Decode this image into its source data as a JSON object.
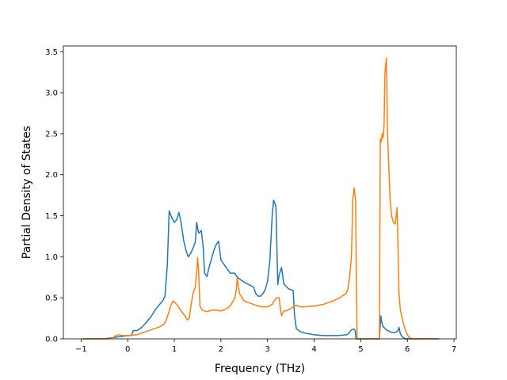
{
  "chart_data": {
    "type": "line",
    "title": "",
    "xlabel": "Frequency (THz)",
    "ylabel": "Partial Density of States",
    "xlim": [
      -1.38,
      7.05
    ],
    "ylim": [
      0.0,
      3.57
    ],
    "xticks": [
      -1,
      0,
      1,
      2,
      3,
      4,
      5,
      6,
      7
    ],
    "xtick_labels": [
      "−1",
      "0",
      "1",
      "2",
      "3",
      "4",
      "5",
      "6",
      "7"
    ],
    "yticks": [
      0.0,
      0.5,
      1.0,
      1.5,
      2.0,
      2.5,
      3.0,
      3.5
    ],
    "ytick_labels": [
      "0.0",
      "0.5",
      "1.0",
      "1.5",
      "2.0",
      "2.5",
      "3.0",
      "3.5"
    ],
    "grid": false,
    "legend": "none",
    "series": [
      {
        "color": "#1f77b4",
        "x": [
          -0.97,
          -0.5,
          0.0,
          0.08,
          0.12,
          0.2,
          0.3,
          0.4,
          0.5,
          0.6,
          0.7,
          0.75,
          0.8,
          0.85,
          0.89,
          0.95,
          1.0,
          1.05,
          1.1,
          1.15,
          1.2,
          1.25,
          1.3,
          1.35,
          1.4,
          1.45,
          1.48,
          1.52,
          1.55,
          1.58,
          1.62,
          1.65,
          1.7,
          1.75,
          1.8,
          1.85,
          1.9,
          1.95,
          2.0,
          2.1,
          2.2,
          2.3,
          2.35,
          2.4,
          2.5,
          2.6,
          2.7,
          2.75,
          2.8,
          2.85,
          2.9,
          2.95,
          3.0,
          3.05,
          3.1,
          3.13,
          3.15,
          3.18,
          3.22,
          3.25,
          3.3,
          3.35,
          3.4,
          3.45,
          3.5,
          3.55,
          3.58,
          3.62,
          3.7,
          3.8,
          4.0,
          4.2,
          4.5,
          4.7,
          4.75,
          4.8,
          4.85,
          4.88,
          4.9,
          4.95,
          5.4,
          5.43,
          5.45,
          5.48,
          5.55,
          5.65,
          5.75,
          5.8,
          5.82,
          5.85,
          5.9,
          5.95,
          6.05,
          6.68
        ],
        "y": [
          0.0,
          0.0,
          0.04,
          0.04,
          0.1,
          0.1,
          0.14,
          0.2,
          0.27,
          0.36,
          0.43,
          0.46,
          0.52,
          0.9,
          1.56,
          1.47,
          1.42,
          1.45,
          1.54,
          1.4,
          1.2,
          1.08,
          1.0,
          1.04,
          1.1,
          1.18,
          1.42,
          1.29,
          1.3,
          1.32,
          1.12,
          0.8,
          0.76,
          0.88,
          0.98,
          1.08,
          1.15,
          1.19,
          0.96,
          0.88,
          0.8,
          0.8,
          0.75,
          0.73,
          0.69,
          0.66,
          0.63,
          0.55,
          0.52,
          0.52,
          0.55,
          0.6,
          0.7,
          0.95,
          1.5,
          1.69,
          1.66,
          1.62,
          0.66,
          0.78,
          0.87,
          0.67,
          0.64,
          0.61,
          0.6,
          0.59,
          0.28,
          0.12,
          0.09,
          0.07,
          0.05,
          0.04,
          0.04,
          0.05,
          0.07,
          0.11,
          0.12,
          0.1,
          0.0,
          0.0,
          0.0,
          0.28,
          0.2,
          0.15,
          0.11,
          0.08,
          0.08,
          0.1,
          0.14,
          0.06,
          0.02,
          0.0,
          0.0,
          0.0
        ]
      },
      {
        "color": "#ff7f0e",
        "x": [
          -0.97,
          -0.4,
          -0.3,
          -0.25,
          -0.2,
          -0.1,
          0.0,
          0.2,
          0.4,
          0.6,
          0.7,
          0.78,
          0.82,
          0.87,
          0.92,
          0.97,
          1.0,
          1.05,
          1.1,
          1.15,
          1.2,
          1.25,
          1.28,
          1.32,
          1.35,
          1.4,
          1.45,
          1.48,
          1.5,
          1.52,
          1.55,
          1.6,
          1.7,
          1.8,
          1.9,
          2.0,
          2.1,
          2.2,
          2.25,
          2.3,
          2.33,
          2.35,
          2.4,
          2.5,
          2.6,
          2.7,
          2.8,
          2.9,
          3.0,
          3.1,
          3.15,
          3.2,
          3.25,
          3.28,
          3.3,
          3.35,
          3.4,
          3.5,
          3.55,
          3.6,
          3.7,
          3.8,
          4.0,
          4.2,
          4.4,
          4.55,
          4.62,
          4.68,
          4.72,
          4.76,
          4.8,
          4.83,
          4.86,
          4.89,
          4.92,
          4.95,
          5.4,
          5.42,
          5.44,
          5.46,
          5.48,
          5.5,
          5.52,
          5.55,
          5.57,
          5.6,
          5.63,
          5.66,
          5.7,
          5.74,
          5.78,
          5.8,
          5.82,
          5.85,
          5.9,
          5.95,
          6.0,
          6.05,
          6.15,
          6.3,
          6.68
        ],
        "y": [
          0.0,
          0.0,
          0.02,
          0.04,
          0.05,
          0.04,
          0.04,
          0.05,
          0.09,
          0.13,
          0.15,
          0.18,
          0.22,
          0.3,
          0.4,
          0.46,
          0.45,
          0.42,
          0.38,
          0.34,
          0.3,
          0.26,
          0.23,
          0.25,
          0.38,
          0.55,
          0.63,
          0.82,
          0.99,
          0.85,
          0.4,
          0.35,
          0.33,
          0.35,
          0.35,
          0.34,
          0.36,
          0.4,
          0.45,
          0.5,
          0.6,
          0.74,
          0.55,
          0.46,
          0.44,
          0.42,
          0.4,
          0.39,
          0.39,
          0.42,
          0.47,
          0.5,
          0.5,
          0.35,
          0.28,
          0.34,
          0.34,
          0.37,
          0.39,
          0.41,
          0.39,
          0.39,
          0.4,
          0.42,
          0.46,
          0.5,
          0.53,
          0.55,
          0.6,
          0.75,
          1.0,
          1.7,
          1.84,
          1.68,
          0.0,
          0.0,
          0.0,
          2.44,
          2.4,
          2.5,
          2.45,
          2.6,
          3.25,
          3.42,
          2.6,
          2.1,
          1.7,
          1.5,
          1.42,
          1.4,
          1.6,
          1.1,
          0.55,
          0.35,
          0.22,
          0.12,
          0.05,
          0.01,
          0.0,
          0.0,
          0.0
        ]
      }
    ]
  }
}
